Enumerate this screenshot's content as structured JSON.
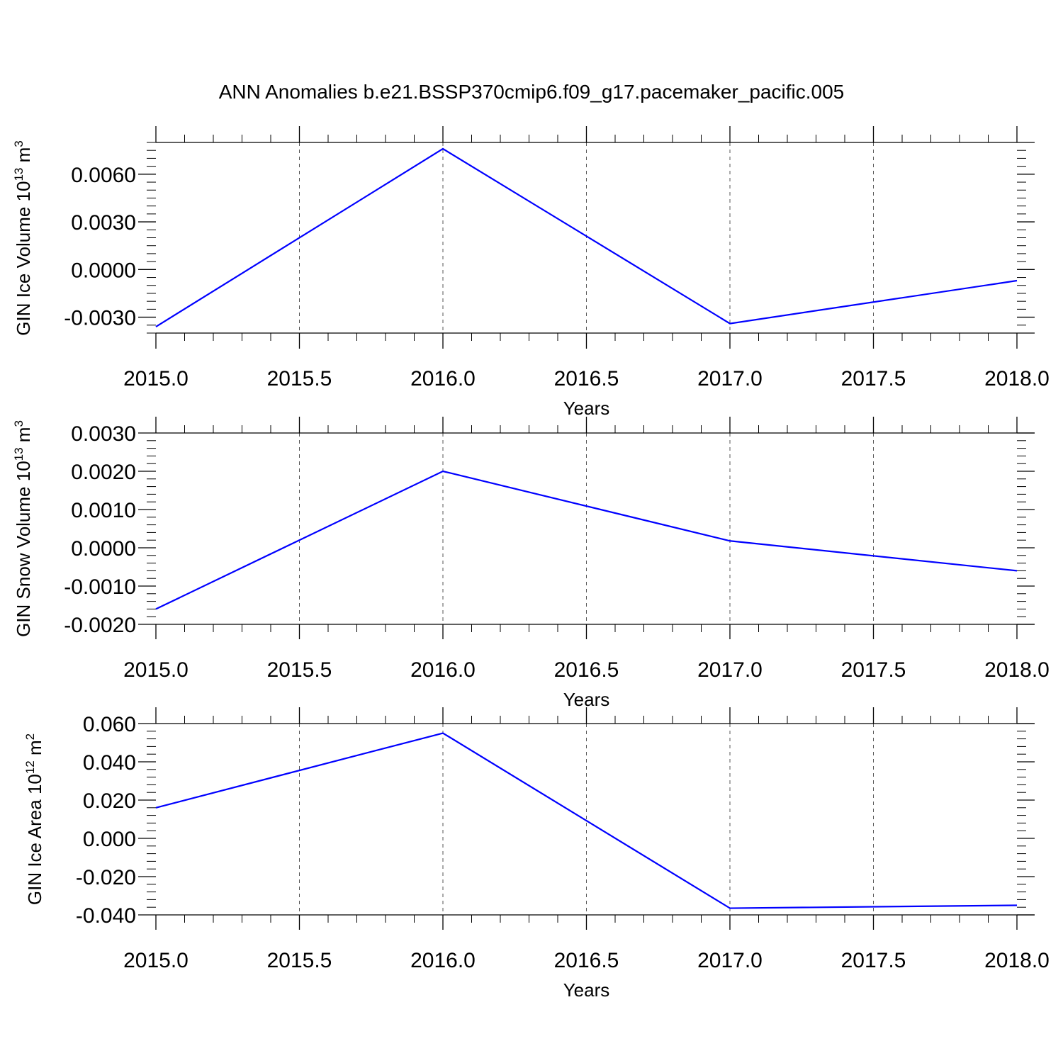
{
  "title": "ANN Anomalies b.e21.BSSP370cmip6.f09_g17.pacemaker_pacific.005",
  "line_color": "#0000ff",
  "chart_data": [
    {
      "type": "line",
      "x": [
        2015,
        2016,
        2017,
        2018
      ],
      "values": [
        -0.0036,
        0.0076,
        -0.0034,
        -0.0007
      ],
      "ylabel": {
        "prefix": "GIN Ice Volume 10",
        "exp": "13",
        "unit": " m",
        "unit_exp": "3"
      },
      "xlabel": "Years",
      "xlim": [
        2015,
        2018
      ],
      "ylim": [
        -0.004,
        0.008
      ],
      "xticks": [
        2015.0,
        2015.5,
        2016.0,
        2016.5,
        2017.0,
        2017.5,
        2018.0
      ],
      "xtick_labels": [
        "2015.0",
        "2015.5",
        "2016.0",
        "2016.5",
        "2017.0",
        "2017.5",
        "2018.0"
      ],
      "yticks": [
        -0.003,
        0,
        0.003,
        0.006
      ],
      "ytick_labels": [
        "-0.0030",
        "0.0000",
        "0.0030",
        "0.0060"
      ],
      "yminor_step": 0.0005,
      "grid": "vertical dashed"
    },
    {
      "type": "line",
      "x": [
        2015,
        2016,
        2017,
        2018
      ],
      "values": [
        -0.0016,
        0.002,
        0.00018,
        -0.0006
      ],
      "ylabel": {
        "prefix": "GIN Snow Volume 10",
        "exp": "13",
        "unit": " m",
        "unit_exp": "3"
      },
      "xlabel": "Years",
      "xlim": [
        2015,
        2018
      ],
      "ylim": [
        -0.002,
        0.003
      ],
      "xticks": [
        2015.0,
        2015.5,
        2016.0,
        2016.5,
        2017.0,
        2017.5,
        2018.0
      ],
      "xtick_labels": [
        "2015.0",
        "2015.5",
        "2016.0",
        "2016.5",
        "2017.0",
        "2017.5",
        "2018.0"
      ],
      "yticks": [
        -0.002,
        -0.001,
        0,
        0.001,
        0.002,
        0.003
      ],
      "ytick_labels": [
        "-0.0020",
        "-0.0010",
        "0.0000",
        "0.0010",
        "0.0020",
        "0.0030"
      ],
      "yminor_step": 0.0002,
      "grid": "vertical dashed"
    },
    {
      "type": "line",
      "x": [
        2015,
        2016,
        2017,
        2018
      ],
      "values": [
        0.016,
        0.055,
        -0.0365,
        -0.035
      ],
      "ylabel": {
        "prefix": "GIN Ice Area 10",
        "exp": "12",
        "unit": " m",
        "unit_exp": "2"
      },
      "xlabel": "Years",
      "xlim": [
        2015,
        2018
      ],
      "ylim": [
        -0.04,
        0.06
      ],
      "xticks": [
        2015.0,
        2015.5,
        2016.0,
        2016.5,
        2017.0,
        2017.5,
        2018.0
      ],
      "xtick_labels": [
        "2015.0",
        "2015.5",
        "2016.0",
        "2016.5",
        "2017.0",
        "2017.5",
        "2018.0"
      ],
      "yticks": [
        -0.04,
        -0.02,
        0,
        0.02,
        0.04,
        0.06
      ],
      "ytick_labels": [
        "-0.040",
        "-0.020",
        "0.000",
        "0.020",
        "0.040",
        "0.060"
      ],
      "yminor_step": 0.004,
      "grid": "vertical dashed"
    }
  ]
}
